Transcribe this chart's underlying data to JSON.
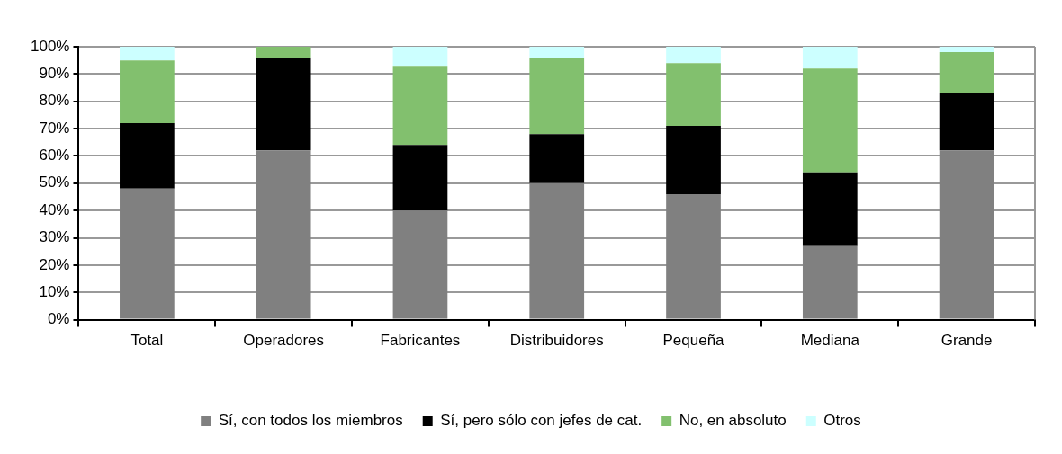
{
  "chart_data": {
    "type": "bar",
    "stacked": true,
    "categories": [
      "Total",
      "Operadores",
      "Fabricantes",
      "Distribuidores",
      "Pequeña",
      "Mediana",
      "Grande"
    ],
    "series": [
      {
        "name": "Sí, con todos los miembros",
        "color": "#808080",
        "values": [
          48,
          62,
          40,
          50,
          46,
          27,
          62
        ]
      },
      {
        "name": "Sí, pero sólo con jefes de cat.",
        "color": "#000000",
        "values": [
          24,
          34,
          24,
          18,
          25,
          27,
          21
        ]
      },
      {
        "name": "No, en absoluto",
        "color": "#82c06e",
        "values": [
          23,
          4,
          29,
          28,
          23,
          38,
          15
        ]
      },
      {
        "name": "Otros",
        "color": "#ccffff",
        "values": [
          5,
          0,
          7,
          4,
          6,
          8,
          2
        ]
      }
    ],
    "ylim": [
      0,
      100
    ],
    "yticks": [
      {
        "value": 0,
        "label": "0%"
      },
      {
        "value": 10,
        "label": "10%"
      },
      {
        "value": 20,
        "label": "20%"
      },
      {
        "value": 30,
        "label": "30%"
      },
      {
        "value": 40,
        "label": "40%"
      },
      {
        "value": 50,
        "label": "50%"
      },
      {
        "value": 60,
        "label": "60%"
      },
      {
        "value": 70,
        "label": "70%"
      },
      {
        "value": 80,
        "label": "80%"
      },
      {
        "value": 90,
        "label": "90%"
      },
      {
        "value": 100,
        "label": "100%"
      }
    ],
    "grid": "y",
    "legend": "bottom"
  }
}
